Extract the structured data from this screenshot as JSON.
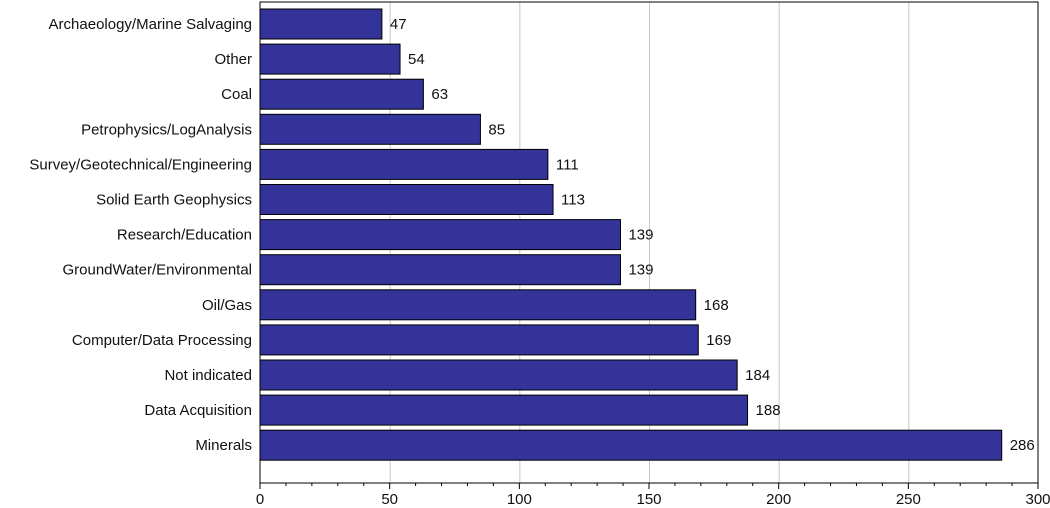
{
  "chart_data": {
    "type": "bar",
    "orientation": "horizontal",
    "title": "",
    "xlabel": "",
    "ylabel": "",
    "categories": [
      "Archaeology/Marine Salvaging",
      "Other",
      "Coal",
      "Petrophysics/LogAnalysis",
      "Survey/Geotechnical/Engineering",
      "Solid Earth Geophysics",
      "Research/Education",
      "GroundWater/Environmental",
      "Oil/Gas",
      "Computer/Data Processing",
      "Not indicated",
      "Data Acquisition",
      "Minerals"
    ],
    "values": [
      47,
      54,
      63,
      85,
      111,
      113,
      139,
      139,
      168,
      169,
      184,
      188,
      286
    ],
    "xlim": [
      0,
      300
    ],
    "x_ticks": [
      0,
      50,
      100,
      150,
      200,
      250,
      300
    ],
    "grid": true,
    "data_labels": true,
    "colors": {
      "bar_fill": "#333399",
      "bar_stroke": "#000000",
      "grid": "#c8c8c8",
      "frame": "#000000"
    }
  }
}
